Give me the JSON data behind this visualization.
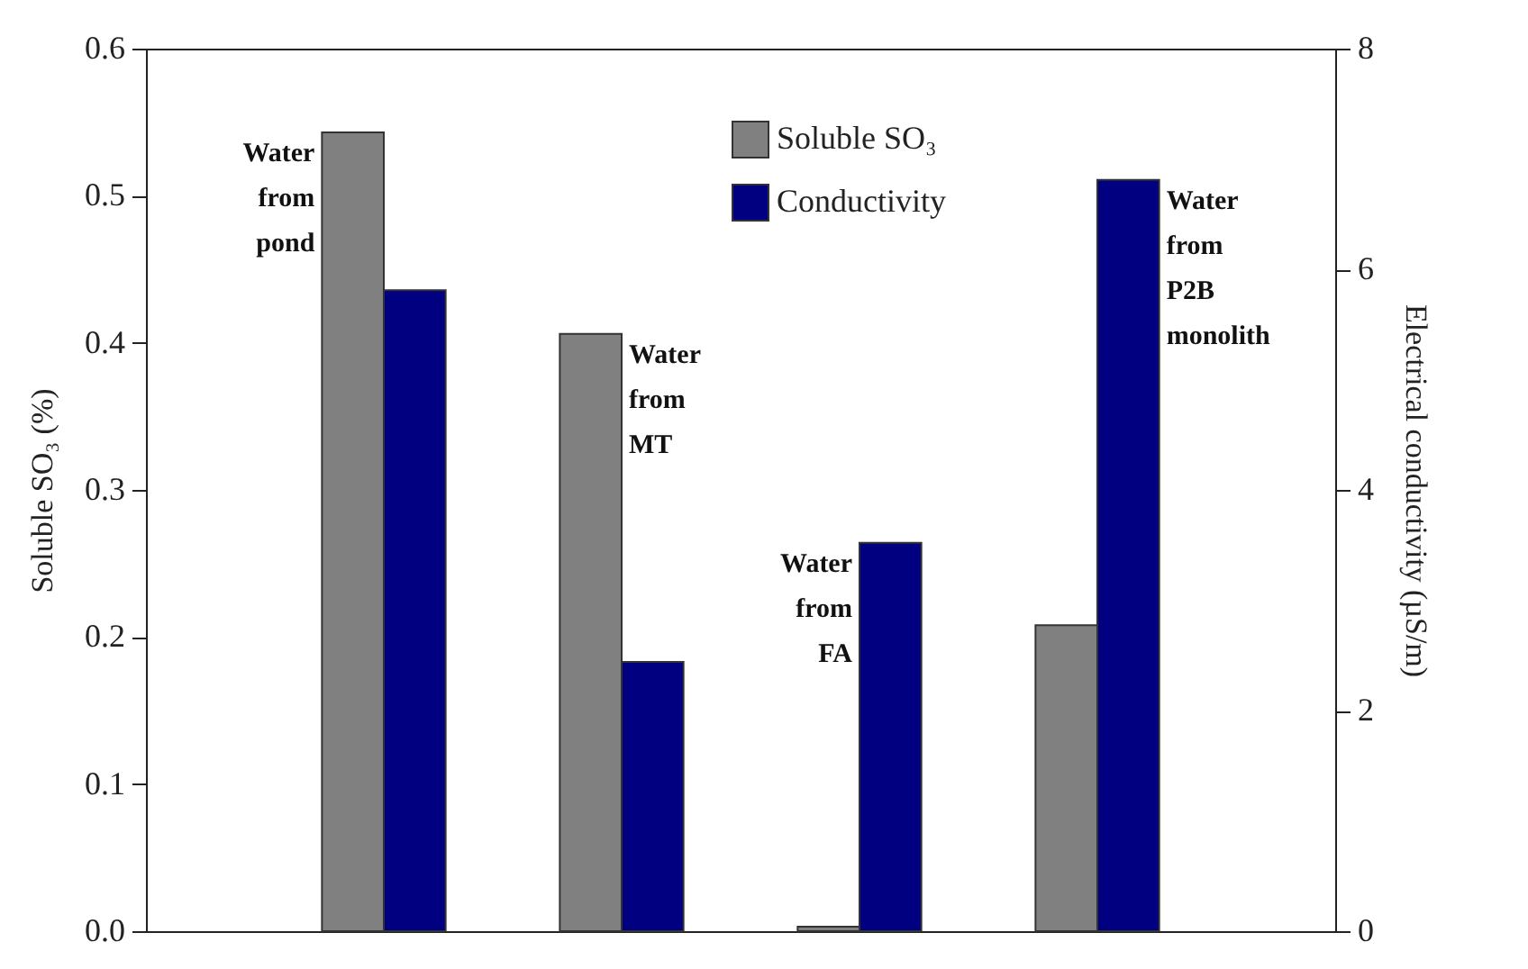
{
  "chart_data": {
    "type": "bar",
    "ylabel": "Soluble SO₃ (%)",
    "y2label": "Electrical conductivity (µS/m)",
    "categories": [
      null,
      null,
      null,
      null
    ],
    "series": [
      {
        "name": "Soluble SO₃",
        "color": "#808080",
        "values": [
          0.543,
          0.406,
          0.003,
          0.208
        ]
      },
      {
        "name": "Conductivity",
        "color": "#000080",
        "axis": "y2",
        "values": [
          5.81,
          2.44,
          3.52,
          6.81
        ]
      }
    ],
    "ylim": [
      0,
      0.6
    ],
    "yticks": [
      {
        "value": 0,
        "label": "0.0"
      },
      0.1,
      0.2,
      0.3,
      0.4,
      0.5,
      0.6
    ],
    "y2lim": [
      0,
      8
    ],
    "y2ticks": [
      0,
      2,
      4,
      6,
      8
    ],
    "annotations": [
      "Water\nfrom\npond",
      "Water\nfrom\nMT",
      "Water\nfrom\nFA",
      "Water\nfrom\nP2B\nmonolith"
    ],
    "legend": "top",
    "grid": false
  }
}
